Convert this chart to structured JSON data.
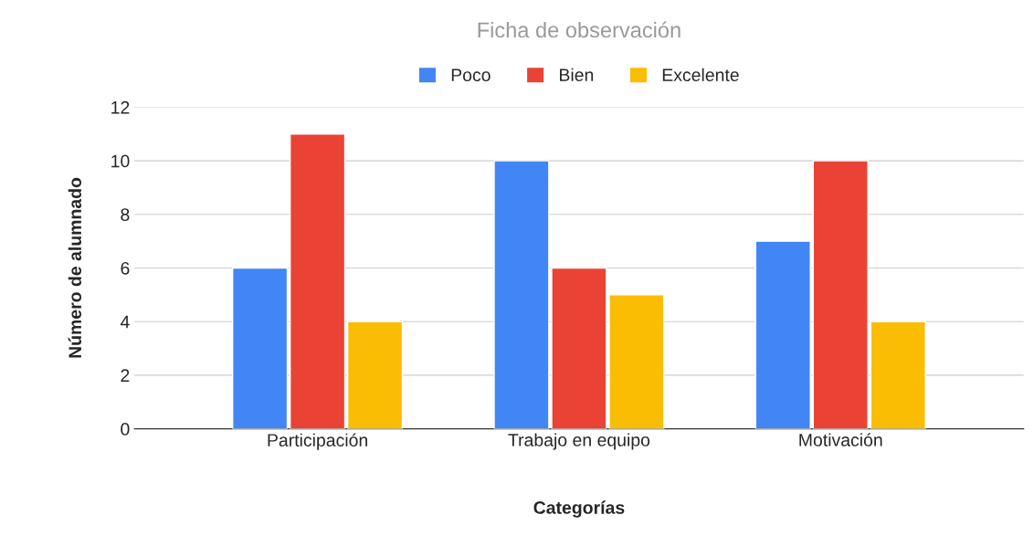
{
  "chart_data": {
    "type": "bar",
    "title": "Ficha de observación",
    "xlabel": "Categorías",
    "ylabel": "Número de alumnado",
    "categories": [
      "Participación",
      "Trabajo en equipo",
      "Motivación"
    ],
    "series": [
      {
        "name": "Poco",
        "color": "#4285f4",
        "values": [
          6,
          10,
          7
        ]
      },
      {
        "name": "Bien",
        "color": "#ea4335",
        "values": [
          11,
          6,
          10
        ]
      },
      {
        "name": "Excelente",
        "color": "#fbbc04",
        "values": [
          4,
          5,
          4
        ]
      }
    ],
    "ylim": [
      0,
      12
    ],
    "yticks": [
      0,
      2,
      4,
      6,
      8,
      10,
      12
    ],
    "grid": "y",
    "legend": "top"
  }
}
